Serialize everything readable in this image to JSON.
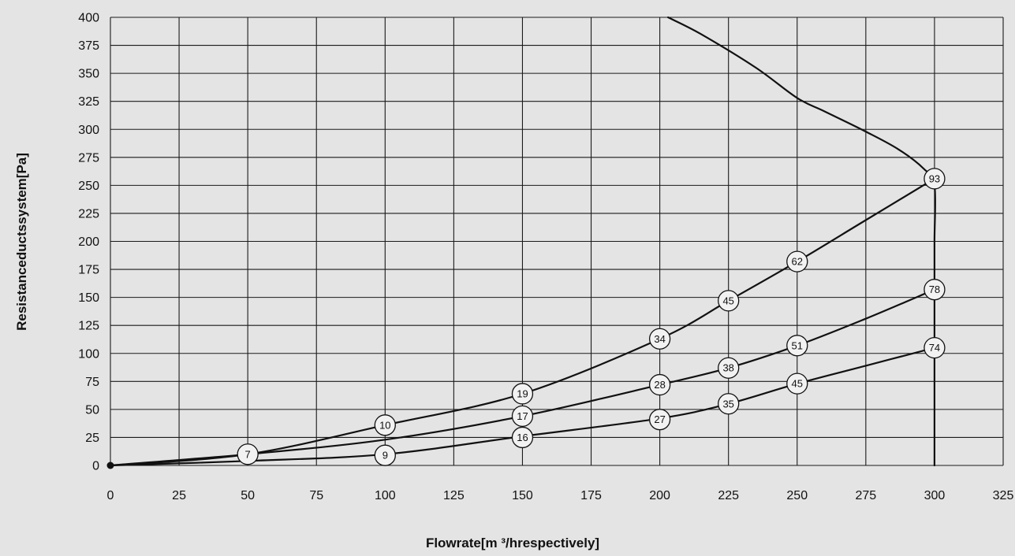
{
  "chart_data": {
    "type": "line",
    "title": "",
    "xlabel": "Flowrate[m ³/hrespectively]",
    "ylabel": "Resistanceductssystem[Pa]",
    "xlim": [
      0,
      325
    ],
    "ylim": [
      0,
      400
    ],
    "x_ticks": [
      0,
      25,
      50,
      75,
      100,
      125,
      150,
      175,
      200,
      225,
      250,
      275,
      300,
      325
    ],
    "y_ticks": [
      0,
      25,
      50,
      75,
      100,
      125,
      150,
      175,
      200,
      225,
      250,
      275,
      300,
      325,
      350,
      375,
      400
    ],
    "grid": true,
    "colors": {
      "background": "#e4e4e4",
      "line": "#111111",
      "badge_fill": "#f2f2f2"
    },
    "series": [
      {
        "kind": "fan-curve",
        "points": [
          [
            203,
            400
          ],
          [
            215,
            385
          ],
          [
            235,
            355
          ],
          [
            250,
            328
          ],
          [
            260,
            316
          ],
          [
            275,
            298
          ],
          [
            287,
            282
          ],
          [
            296,
            265
          ],
          [
            300,
            250
          ],
          [
            300,
            200
          ],
          [
            300,
            150
          ],
          [
            300,
            100
          ],
          [
            300,
            75
          ],
          [
            300,
            50
          ],
          [
            300,
            0
          ]
        ]
      },
      {
        "kind": "system-curve",
        "points": [
          [
            0,
            0
          ],
          [
            50,
            10
          ],
          [
            100,
            36
          ],
          [
            150,
            64
          ],
          [
            200,
            113
          ],
          [
            225,
            147
          ],
          [
            250,
            182
          ],
          [
            275,
            219
          ],
          [
            300,
            256
          ]
        ],
        "labels": [
          {
            "x": 50,
            "y": 10,
            "text": "7"
          },
          {
            "x": 100,
            "y": 36,
            "text": "10"
          },
          {
            "x": 150,
            "y": 64,
            "text": "19"
          },
          {
            "x": 200,
            "y": 113,
            "text": "34"
          },
          {
            "x": 225,
            "y": 147,
            "text": "45"
          },
          {
            "x": 250,
            "y": 182,
            "text": "62"
          },
          {
            "x": 300,
            "y": 256,
            "text": "93"
          }
        ]
      },
      {
        "kind": "system-curve",
        "points": [
          [
            0,
            0
          ],
          [
            50,
            10
          ],
          [
            100,
            23
          ],
          [
            150,
            44
          ],
          [
            200,
            72
          ],
          [
            225,
            87
          ],
          [
            250,
            107
          ],
          [
            275,
            131
          ],
          [
            300,
            157
          ]
        ],
        "labels": [
          {
            "x": 150,
            "y": 44,
            "text": "17"
          },
          {
            "x": 200,
            "y": 72,
            "text": "28"
          },
          {
            "x": 225,
            "y": 87,
            "text": "38"
          },
          {
            "x": 250,
            "y": 107,
            "text": "51"
          },
          {
            "x": 300,
            "y": 157,
            "text": "78"
          }
        ]
      },
      {
        "kind": "system-curve",
        "points": [
          [
            0,
            0
          ],
          [
            50,
            4
          ],
          [
            100,
            10
          ],
          [
            150,
            26
          ],
          [
            200,
            42
          ],
          [
            225,
            55
          ],
          [
            250,
            73
          ],
          [
            275,
            89
          ],
          [
            300,
            105
          ]
        ],
        "labels": [
          {
            "x": 100,
            "y": 9,
            "text": "9"
          },
          {
            "x": 150,
            "y": 25,
            "text": "16"
          },
          {
            "x": 200,
            "y": 41,
            "text": "27"
          },
          {
            "x": 225,
            "y": 55,
            "text": "35"
          },
          {
            "x": 250,
            "y": 73,
            "text": "45"
          },
          {
            "x": 300,
            "y": 105,
            "text": "74"
          }
        ]
      }
    ]
  }
}
